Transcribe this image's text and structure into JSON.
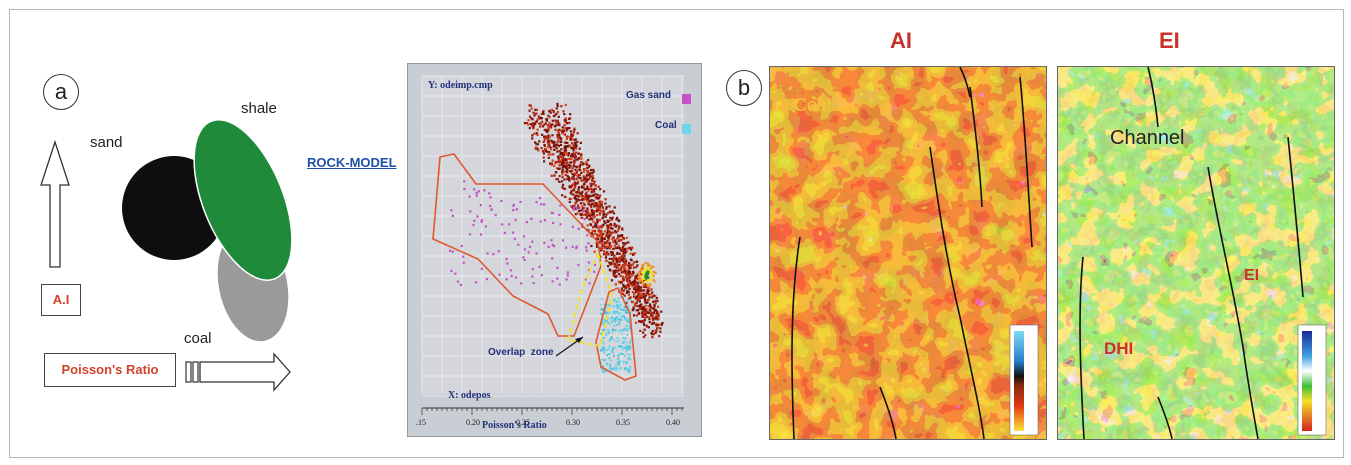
{
  "panel_a": {
    "marker": "a",
    "labels": {
      "sand": "sand",
      "shale": "shale",
      "coal": "coal"
    },
    "y_axis_box": "A.I",
    "x_axis_box": "Poisson's Ratio",
    "colors": {
      "sand": "#111111",
      "shale": "#1e8a3a",
      "coal": "#9a9a9a",
      "box_text": "#d2422a"
    }
  },
  "rock_model": "ROCK-MODEL",
  "crossplot": {
    "y_var": "Y: odeimp.cmp",
    "x_var": "X: odepos",
    "x_axis_title": "Poisson's Ratio",
    "x_ticks": [
      ".15",
      "0.20",
      "0.25",
      "0.30",
      "0.35",
      "0.40"
    ],
    "legend": [
      {
        "name": "Gas sand",
        "color": "#c653c6"
      },
      {
        "name": "Coal",
        "color": "#6fd6e6"
      }
    ],
    "annotation": "Overlap  zone"
  },
  "panel_b": {
    "marker": "b",
    "maps": [
      {
        "title": "AI",
        "labels": [
          "Coal"
        ]
      },
      {
        "title": "EI",
        "labels": [
          "Channel",
          "EI",
          "DHI"
        ]
      }
    ]
  }
}
